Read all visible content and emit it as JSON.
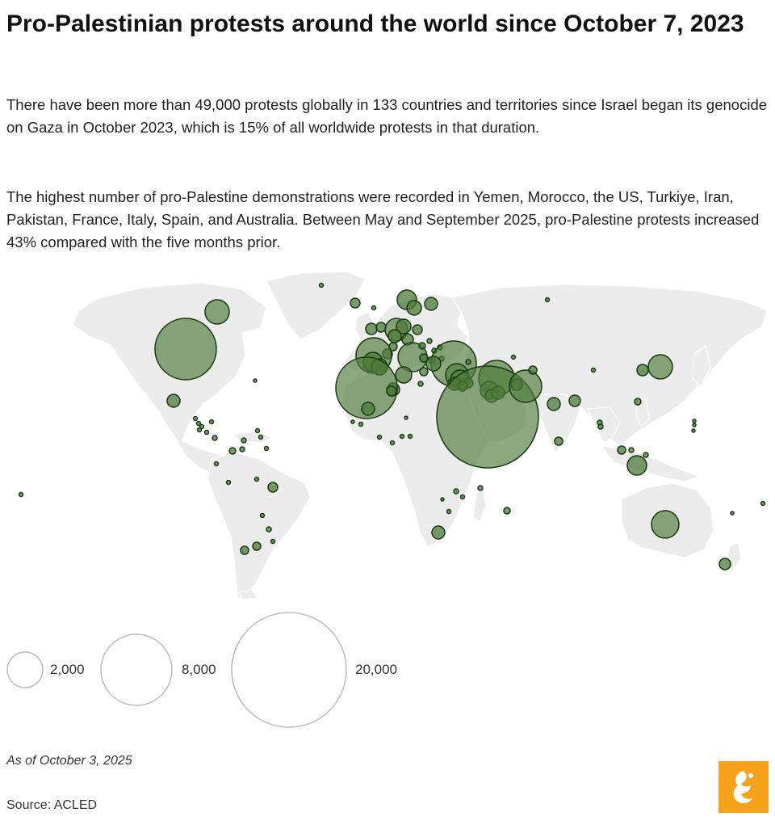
{
  "header": {
    "title": "Pro-Palestinian protests around the world since October 7, 2023",
    "paragraph1": "There have been more than 49,000 protests globally in 133 countries and territories since Israel began its genocide on Gaza in October 2023, which is 15% of all worldwide protests in that duration.",
    "paragraph2": "The highest number of pro-Palestine demonstrations were recorded in Yemen, Morocco, the US, Turkiye, Iran, Pakistan, France, Italy, Spain, and Australia. Between May and September 2025, pro-Palestine protests increased 43% compared with the five months prior."
  },
  "map": {
    "bubble_fill": "#4e7a3a",
    "bubble_stroke": "#173a10",
    "land_color": "#ececec",
    "border_color": "#ffffff",
    "largest_bubbles": [
      {
        "country": "Yemen",
        "approx_protests": 15000
      },
      {
        "country": "Morocco",
        "approx_protests": 9500
      },
      {
        "country": "United States",
        "approx_protests": 7500
      },
      {
        "country": "Turkiye",
        "approx_protests": 3500
      },
      {
        "country": "Iran",
        "approx_protests": 2400
      },
      {
        "country": "Pakistan",
        "approx_protests": 2000
      },
      {
        "country": "France",
        "approx_protests": 1500
      },
      {
        "country": "Italy",
        "approx_protests": 1500
      },
      {
        "country": "Spain",
        "approx_protests": 1400
      },
      {
        "country": "Australia",
        "approx_protests": 600
      }
    ]
  },
  "legend": {
    "items": [
      {
        "value": 2000,
        "label": "2,000"
      },
      {
        "value": 8000,
        "label": "8,000"
      },
      {
        "value": 20000,
        "label": "20,000"
      }
    ],
    "circle_stroke": "#bdbdbd"
  },
  "footer": {
    "as_of": "As of October 3, 2025",
    "source": "Source: ACLED",
    "logo_color": "#f7a21b"
  }
}
